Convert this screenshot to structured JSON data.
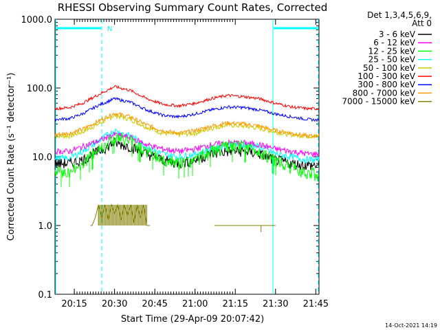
{
  "chart_data": {
    "type": "line",
    "title": "RHESSI Observing Summary Count Rates, Corrected",
    "xlabel": "Start Time (29-Apr-09 20:07:42)",
    "ylabel": "Corrected Count Rate (s⁻¹ detector⁻¹)",
    "yscale": "log",
    "ylim": [
      0.1,
      1000
    ],
    "xlim_minutes": [
      20.13,
      21.77
    ],
    "y_ticks": [
      "1000.0",
      "100.0",
      "10.0",
      "1.0",
      "0.1"
    ],
    "y_tick_values": [
      1000,
      100,
      10,
      1,
      0.1
    ],
    "x_ticks": [
      "20:15",
      "20:30",
      "20:45",
      "21:00",
      "21:15",
      "21:30",
      "21:45"
    ],
    "x_tick_values_minutes": [
      20.25,
      20.5,
      20.75,
      21.0,
      21.25,
      21.5,
      21.75
    ],
    "legend_header": [
      "Det 1,3,4,5,6,9,",
      "Att 0"
    ],
    "legend_position": "right",
    "annotation_N": "N",
    "timestamp": "14-Oct-2021 14:19",
    "series": [
      {
        "name": "3 - 6 keV",
        "color": "#000000",
        "x": [
          20.13,
          20.22,
          20.3,
          20.4,
          20.5,
          20.6,
          20.7,
          20.8,
          20.9,
          21.0,
          21.1,
          21.2,
          21.3,
          21.4,
          21.5,
          21.6,
          21.7,
          21.77
        ],
        "y": [
          8,
          8,
          9,
          12,
          16,
          14,
          11,
          9,
          8,
          9,
          11,
          12,
          12,
          11,
          9,
          8,
          7.5,
          7.5
        ]
      },
      {
        "name": "6 - 12 keV",
        "color": "#ff00ff",
        "x": [
          20.13,
          20.22,
          20.3,
          20.4,
          20.5,
          20.6,
          20.7,
          20.8,
          20.9,
          21.0,
          21.1,
          21.2,
          21.3,
          21.4,
          21.5,
          21.6,
          21.7,
          21.77
        ],
        "y": [
          12,
          12,
          14,
          17,
          21,
          19,
          15,
          13,
          12,
          13,
          15,
          16,
          16,
          15,
          13,
          12,
          11,
          11
        ]
      },
      {
        "name": "12 - 25 keV",
        "color": "#00ff00",
        "x": [
          20.13,
          20.22,
          20.3,
          20.4,
          20.5,
          20.6,
          20.7,
          20.8,
          20.9,
          21.0,
          21.1,
          21.2,
          21.3,
          21.4,
          21.5,
          21.6,
          21.7,
          21.77
        ],
        "y": [
          6,
          6,
          8,
          13,
          19,
          17,
          12,
          9,
          8,
          9,
          12,
          14,
          14,
          12,
          9,
          7,
          6,
          5.5
        ]
      },
      {
        "name": "25 - 50 keV",
        "color": "#00ffff",
        "x": [
          20.13,
          20.22,
          20.3,
          20.4,
          20.5,
          20.6,
          20.7,
          20.8,
          20.9,
          21.0,
          21.1,
          21.2,
          21.3,
          21.4,
          21.5,
          21.6,
          21.7,
          21.77
        ],
        "y": [
          9.5,
          9.5,
          12,
          17,
          24,
          20,
          14,
          11,
          10,
          11,
          13,
          15,
          15,
          14,
          11,
          10,
          9,
          9
        ]
      },
      {
        "name": "50 - 100 keV",
        "color": "#cccc00",
        "x": [
          20.13,
          20.22,
          20.3,
          20.4,
          20.5,
          20.6,
          20.7,
          20.8,
          20.9,
          21.0,
          21.1,
          21.2,
          21.3,
          21.4,
          21.5,
          21.6,
          21.7,
          21.77
        ],
        "y": [
          20,
          20,
          23,
          30,
          40,
          35,
          27,
          22,
          21,
          22,
          26,
          29,
          28,
          26,
          23,
          21,
          20,
          20
        ]
      },
      {
        "name": "100 - 300 keV",
        "color": "#ff0000",
        "x": [
          20.13,
          20.22,
          20.3,
          20.4,
          20.5,
          20.6,
          20.7,
          20.8,
          20.9,
          21.0,
          21.1,
          21.2,
          21.3,
          21.4,
          21.5,
          21.6,
          21.7,
          21.77
        ],
        "y": [
          50,
          52,
          60,
          80,
          105,
          92,
          70,
          58,
          55,
          60,
          70,
          78,
          75,
          70,
          60,
          53,
          50,
          50
        ]
      },
      {
        "name": "300 - 800 keV",
        "color": "#0000ff",
        "x": [
          20.13,
          20.22,
          20.3,
          20.4,
          20.5,
          20.6,
          20.7,
          20.8,
          20.9,
          21.0,
          21.1,
          21.2,
          21.3,
          21.4,
          21.5,
          21.6,
          21.7,
          21.77
        ],
        "y": [
          35,
          36,
          42,
          56,
          70,
          62,
          48,
          40,
          38,
          42,
          48,
          53,
          52,
          48,
          42,
          38,
          35,
          34
        ]
      },
      {
        "name": "800 - 7000 keV",
        "color": "#ff9900",
        "x": [
          20.13,
          20.22,
          20.3,
          20.4,
          20.5,
          20.6,
          20.7,
          20.8,
          20.9,
          21.0,
          21.1,
          21.2,
          21.3,
          21.4,
          21.5,
          21.6,
          21.7,
          21.77
        ],
        "y": [
          21,
          22,
          25,
          33,
          43,
          38,
          29,
          24,
          22,
          24,
          28,
          31,
          30,
          28,
          24,
          22,
          20,
          20
        ]
      },
      {
        "name": "7000 - 15000 keV",
        "color": "#808000",
        "x": [
          20.35,
          20.36,
          20.38,
          20.4,
          20.42,
          20.44,
          20.46,
          20.48,
          20.5,
          20.52,
          20.54,
          20.56,
          20.58,
          20.6,
          20.62,
          20.64,
          20.66,
          20.68,
          20.7,
          20.72,
          21.12,
          21.2,
          21.3,
          21.36,
          21.4,
          21.43,
          21.46,
          21.5
        ],
        "y": [
          1,
          1,
          1.3,
          2,
          1.3,
          2,
          1.2,
          2,
          1.5,
          2,
          1.2,
          2,
          1.4,
          2,
          1.1,
          2,
          1.3,
          2,
          1,
          1,
          1,
          1,
          1,
          1,
          1,
          1,
          1,
          1
        ]
      }
    ]
  }
}
